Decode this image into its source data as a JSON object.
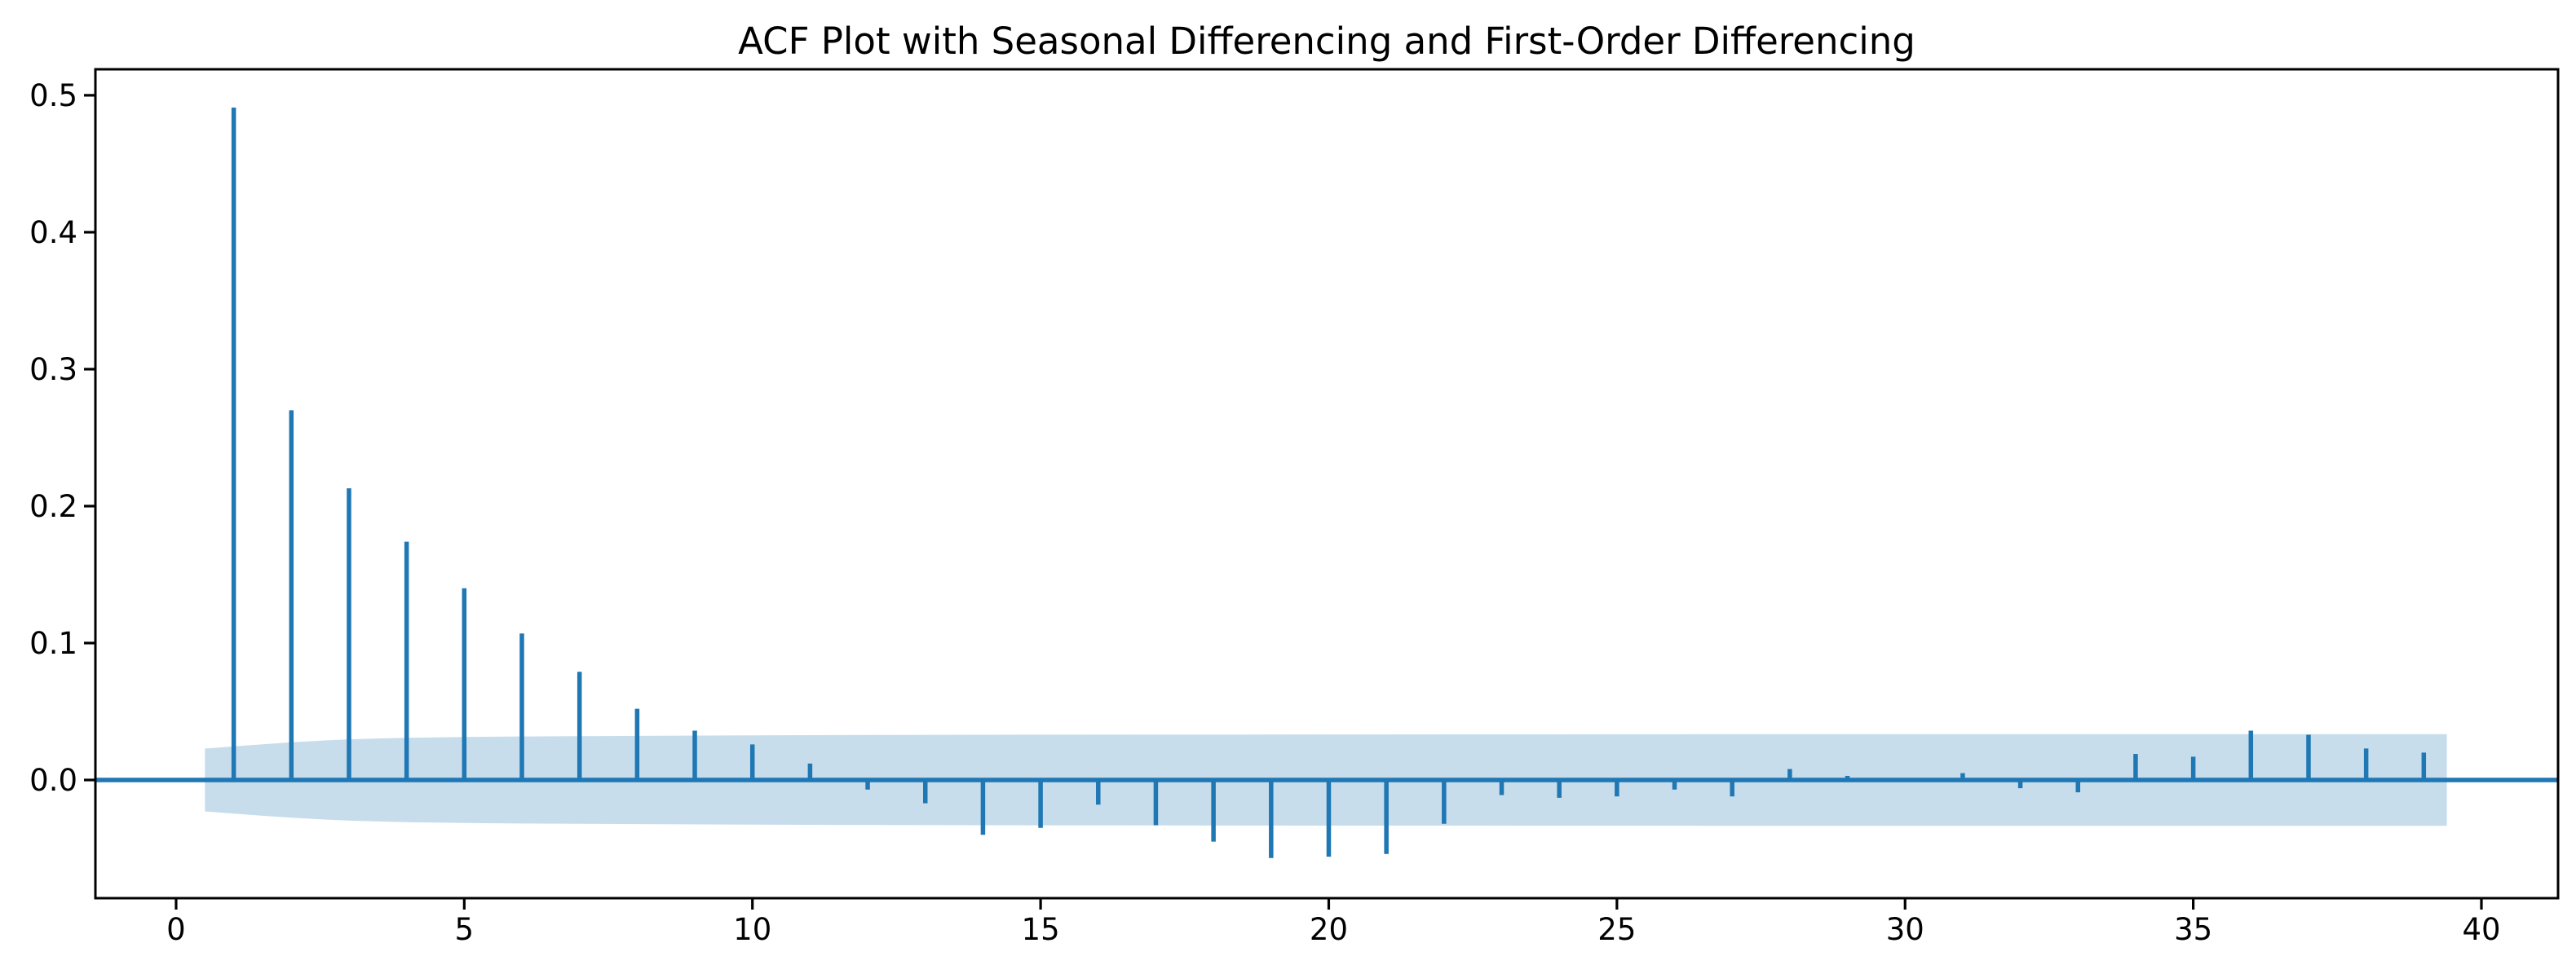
{
  "figure": {
    "background": "#ffffff"
  },
  "chart_data": {
    "type": "bar",
    "subtype": "stem-acf",
    "title": "ACF Plot with Seasonal Differencing and First-Order Differencing",
    "xlabel": "",
    "ylabel": "",
    "grid": false,
    "legend_position": "none",
    "xlim": [
      -1.4,
      41.33
    ],
    "ylim": [
      -0.0863,
      0.519
    ],
    "x_ticks": [
      0,
      5,
      10,
      15,
      20,
      25,
      30,
      35,
      40
    ],
    "y_ticks": [
      "0.0",
      "0.1",
      "0.2",
      "0.3",
      "0.4",
      "0.5"
    ],
    "lags": [
      1,
      2,
      3,
      4,
      5,
      6,
      7,
      8,
      9,
      10,
      11,
      12,
      13,
      14,
      15,
      16,
      17,
      18,
      19,
      20,
      21,
      22,
      23,
      24,
      25,
      26,
      27,
      28,
      29,
      30,
      31,
      32,
      33,
      34,
      35,
      36,
      37,
      38,
      39
    ],
    "acf_values": [
      0.491,
      0.27,
      0.213,
      0.174,
      0.14,
      0.107,
      0.079,
      0.052,
      0.036,
      0.026,
      0.012,
      -0.007,
      -0.017,
      -0.04,
      -0.035,
      -0.018,
      -0.033,
      -0.045,
      -0.057,
      -0.056,
      -0.054,
      -0.032,
      -0.011,
      -0.013,
      -0.012,
      -0.007,
      -0.012,
      0.008,
      0.003,
      0.001,
      0.005,
      -0.006,
      -0.009,
      0.019,
      0.017,
      0.036,
      0.033,
      0.023,
      0.02
    ],
    "zero_line_y": 0,
    "confidence_band": {
      "start_lag": 0.5,
      "end_lag": 39.4,
      "half_width_points": [
        [
          0.5,
          0.023
        ],
        [
          1,
          0.0245
        ],
        [
          1.5,
          0.0261
        ],
        [
          2,
          0.0275
        ],
        [
          2.5,
          0.0287
        ],
        [
          3,
          0.0297
        ],
        [
          3.5,
          0.0303
        ],
        [
          4,
          0.0308
        ],
        [
          5,
          0.0314
        ],
        [
          6,
          0.0318
        ],
        [
          7,
          0.032
        ],
        [
          8,
          0.0322
        ],
        [
          10,
          0.0326
        ],
        [
          12,
          0.0329
        ],
        [
          15,
          0.0331
        ],
        [
          20,
          0.0333
        ],
        [
          25,
          0.0334
        ],
        [
          30,
          0.0335
        ],
        [
          35,
          0.0335
        ],
        [
          39.4,
          0.0335
        ]
      ]
    },
    "colors": {
      "stem": "#1f77b4",
      "zero_line": "#1f77b4",
      "band": "#1f77b4",
      "band_opacity": 0.25,
      "spine": "#000000",
      "tick": "#000000",
      "tick_label": "#000000",
      "title": "#000000"
    }
  }
}
